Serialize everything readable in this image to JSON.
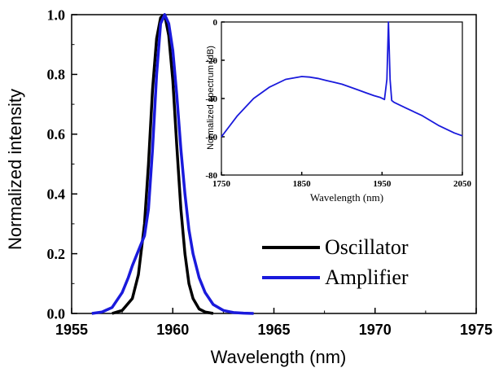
{
  "chart_data": [
    {
      "type": "line",
      "xlabel": "Wavelength (nm)",
      "ylabel": "Normalized intensity",
      "xlim": [
        1955,
        1975
      ],
      "ylim": [
        0,
        1.0
      ],
      "xticks": [
        1955,
        1960,
        1965,
        1970,
        1975
      ],
      "yticks": [
        0.0,
        0.2,
        0.4,
        0.6,
        0.8,
        1.0
      ],
      "xtick_labels": [
        "1955",
        "1960",
        "1965",
        "1970",
        "1975"
      ],
      "ytick_labels": [
        "0.0",
        "0.2",
        "0.4",
        "0.6",
        "0.8",
        "1.0"
      ],
      "grid": false,
      "legend_position": "bottom-right",
      "series": [
        {
          "name": "Oscillator",
          "color": "#000000",
          "x": [
            1957.0,
            1957.5,
            1958.0,
            1958.3,
            1958.6,
            1958.8,
            1959.0,
            1959.2,
            1959.4,
            1959.6,
            1959.8,
            1960.0,
            1960.2,
            1960.4,
            1960.6,
            1960.8,
            1961.0,
            1961.3,
            1961.6,
            1962.0
          ],
          "y": [
            0.0,
            0.01,
            0.05,
            0.13,
            0.3,
            0.5,
            0.75,
            0.92,
            0.99,
            1.0,
            0.93,
            0.78,
            0.56,
            0.35,
            0.2,
            0.1,
            0.05,
            0.015,
            0.005,
            0.0
          ]
        },
        {
          "name": "Amplifier",
          "color": "#1a1adc",
          "x": [
            1956.0,
            1956.5,
            1957.0,
            1957.5,
            1957.8,
            1958.0,
            1958.3,
            1958.6,
            1958.8,
            1959.0,
            1959.2,
            1959.4,
            1959.6,
            1959.8,
            1960.0,
            1960.2,
            1960.4,
            1960.6,
            1960.8,
            1961.0,
            1961.3,
            1961.6,
            1962.0,
            1962.5,
            1963.0,
            1963.5,
            1964.0
          ],
          "y": [
            0.0,
            0.005,
            0.02,
            0.07,
            0.12,
            0.16,
            0.21,
            0.26,
            0.35,
            0.55,
            0.8,
            0.97,
            1.0,
            0.97,
            0.88,
            0.73,
            0.55,
            0.4,
            0.28,
            0.2,
            0.12,
            0.07,
            0.03,
            0.01,
            0.003,
            0.001,
            0.0
          ]
        }
      ]
    },
    {
      "type": "line",
      "xlabel": "Wavelength (nm)",
      "ylabel": "Normalized spectrum (dB)",
      "xlim": [
        1750,
        2050
      ],
      "ylim": [
        -80,
        0
      ],
      "xticks": [
        1750,
        1850,
        1950,
        2050
      ],
      "yticks": [
        0,
        -20,
        -40,
        -60,
        -80
      ],
      "xtick_labels": [
        "1750",
        "1850",
        "1950",
        "2050"
      ],
      "ytick_labels": [
        "0",
        "-20",
        "-40",
        "-60",
        "-80"
      ],
      "grid": false,
      "series": [
        {
          "color": "#1a1adc",
          "x": [
            1750,
            1770,
            1790,
            1810,
            1830,
            1850,
            1860,
            1870,
            1880,
            1890,
            1900,
            1910,
            1920,
            1930,
            1940,
            1948,
            1953,
            1956,
            1958,
            1960,
            1962,
            1965,
            1980,
            2000,
            2020,
            2040,
            2050
          ],
          "y": [
            -60,
            -49,
            -40,
            -34,
            -30,
            -28.5,
            -28.8,
            -29.5,
            -30.5,
            -31.5,
            -32.5,
            -34,
            -35.5,
            -37,
            -38.5,
            -39.5,
            -40.5,
            -30,
            0,
            -30,
            -41,
            -42,
            -45,
            -49,
            -54,
            -58,
            -59.5
          ]
        }
      ]
    }
  ],
  "legend": {
    "oscillator_label": "Oscillator",
    "amplifier_label": "Amplifier"
  }
}
